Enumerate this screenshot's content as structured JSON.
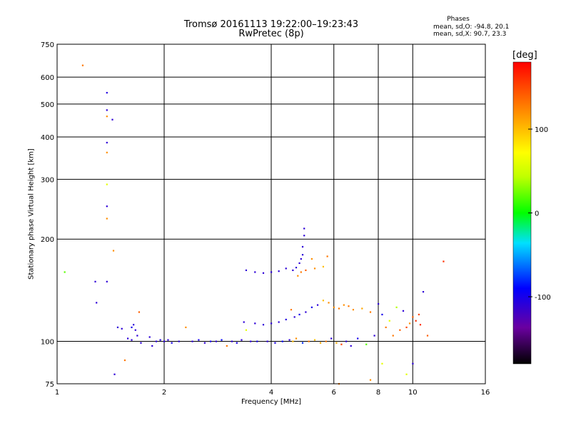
{
  "chart_data": {
    "type": "scatter",
    "title": "Tromsø 20161113 19:22:00–19:23:43",
    "subtitle": "RwPretec (8p)",
    "xlabel": "Frequency [MHz]",
    "ylabel": "Stationary phase Virtual Height [km]",
    "x_scale": "log",
    "y_scale": "log",
    "xlim": [
      1,
      16
    ],
    "ylim": [
      75,
      750
    ],
    "xticks": [
      "1",
      "2",
      "4",
      "6",
      "8",
      "10",
      "16"
    ],
    "yticks": [
      "75",
      "100",
      "200",
      "300",
      "400",
      "500",
      "600",
      "750"
    ],
    "grid": true,
    "phases": {
      "title": "Phases",
      "mean_o": "mean, sd,O: -94.8, 20.1",
      "mean_x": "mean, sd,X: 90.7, 23.3"
    },
    "colorbar": {
      "title": "[deg]",
      "ticks": [
        "100",
        "0",
        "-100"
      ],
      "range": [
        -180,
        180
      ]
    },
    "series": [
      {
        "points": [
          [
            1.05,
            160,
            20
          ],
          [
            1.18,
            650,
            130
          ],
          [
            1.28,
            150,
            -110
          ],
          [
            1.29,
            130,
            -110
          ],
          [
            1.38,
            540,
            -105
          ],
          [
            1.38,
            480,
            -110
          ],
          [
            1.38,
            460,
            120
          ],
          [
            1.38,
            385,
            -110
          ],
          [
            1.38,
            360,
            120
          ],
          [
            1.38,
            290,
            60
          ],
          [
            1.38,
            250,
            -110
          ],
          [
            1.38,
            230,
            120
          ],
          [
            1.38,
            150,
            -110
          ],
          [
            1.43,
            450,
            -110
          ],
          [
            1.44,
            185,
            120
          ],
          [
            1.45,
            80,
            -110
          ],
          [
            1.48,
            110,
            -110
          ],
          [
            1.52,
            109,
            -110
          ],
          [
            1.55,
            88,
            130
          ],
          [
            1.58,
            102,
            -110
          ],
          [
            1.62,
            101,
            -110
          ],
          [
            1.62,
            110,
            -100
          ],
          [
            1.64,
            112,
            -110
          ],
          [
            1.66,
            108,
            -110
          ],
          [
            1.68,
            104,
            -110
          ],
          [
            1.7,
            122,
            140
          ],
          [
            1.72,
            99,
            -110
          ],
          [
            1.82,
            103,
            -110
          ],
          [
            1.85,
            97,
            -110
          ],
          [
            1.9,
            100,
            -110
          ],
          [
            1.95,
            101,
            -105
          ],
          [
            2.0,
            100,
            -110
          ],
          [
            2.05,
            101,
            -110
          ],
          [
            2.1,
            99,
            -100
          ],
          [
            2.2,
            100,
            -110
          ],
          [
            2.3,
            110,
            120
          ],
          [
            2.4,
            100,
            -110
          ],
          [
            2.5,
            101,
            -100
          ],
          [
            2.6,
            99,
            -110
          ],
          [
            2.7,
            100,
            -100
          ],
          [
            2.8,
            100,
            -110
          ],
          [
            2.9,
            101,
            -90
          ],
          [
            3.0,
            97,
            130
          ],
          [
            3.1,
            100,
            -110
          ],
          [
            3.2,
            99,
            -100
          ],
          [
            3.3,
            101,
            -110
          ],
          [
            3.35,
            114,
            -110
          ],
          [
            3.4,
            108,
            60
          ],
          [
            3.5,
            100,
            -110
          ],
          [
            3.6,
            113,
            -110
          ],
          [
            3.65,
            100,
            -100
          ],
          [
            3.8,
            112,
            -110
          ],
          [
            3.9,
            100,
            -110
          ],
          [
            4.0,
            113,
            -110
          ],
          [
            4.1,
            99,
            -100
          ],
          [
            4.2,
            114,
            -110
          ],
          [
            4.3,
            100,
            -90
          ],
          [
            4.4,
            116,
            -105
          ],
          [
            4.5,
            101,
            -110
          ],
          [
            4.55,
            124,
            130
          ],
          [
            4.6,
            100,
            100
          ],
          [
            4.65,
            118,
            -110
          ],
          [
            4.7,
            102,
            120
          ],
          [
            4.8,
            120,
            -100
          ],
          [
            4.9,
            99,
            -80
          ],
          [
            5.0,
            122,
            -110
          ],
          [
            5.1,
            100,
            130
          ],
          [
            5.2,
            126,
            -100
          ],
          [
            5.3,
            101,
            100
          ],
          [
            5.4,
            128,
            -110
          ],
          [
            5.5,
            99,
            110
          ],
          [
            5.6,
            132,
            100
          ],
          [
            5.7,
            100,
            130
          ],
          [
            5.8,
            130,
            120
          ],
          [
            5.9,
            102,
            -110
          ],
          [
            6.0,
            126,
            120
          ],
          [
            6.1,
            99,
            110
          ],
          [
            6.2,
            125,
            130
          ],
          [
            6.3,
            98,
            150
          ],
          [
            6.4,
            128,
            120
          ],
          [
            6.5,
            100,
            -110
          ],
          [
            6.6,
            127,
            130
          ],
          [
            6.7,
            97,
            -110
          ],
          [
            6.8,
            124,
            120
          ],
          [
            7.0,
            102,
            -100
          ],
          [
            7.2,
            125,
            110
          ],
          [
            7.4,
            98,
            20
          ],
          [
            7.6,
            122,
            130
          ],
          [
            7.8,
            104,
            -110
          ],
          [
            8.0,
            129,
            -110
          ],
          [
            8.2,
            120,
            -100
          ],
          [
            8.4,
            110,
            130
          ],
          [
            8.6,
            115,
            60
          ],
          [
            8.8,
            104,
            130
          ],
          [
            9.0,
            126,
            40
          ],
          [
            9.2,
            108,
            140
          ],
          [
            9.4,
            123,
            -110
          ],
          [
            9.6,
            110,
            150
          ],
          [
            9.8,
            113,
            120
          ],
          [
            10.0,
            118,
            140
          ],
          [
            10.2,
            115,
            160
          ],
          [
            10.4,
            120,
            150
          ],
          [
            10.5,
            112,
            160
          ],
          [
            10.7,
            140,
            -110
          ],
          [
            10.0,
            86,
            -110
          ],
          [
            9.6,
            80,
            60
          ],
          [
            8.2,
            86,
            60
          ],
          [
            6.2,
            75,
            130
          ],
          [
            7.6,
            77,
            120
          ],
          [
            4.75,
            156,
            120
          ],
          [
            4.85,
            160,
            130
          ],
          [
            5.0,
            162,
            140
          ],
          [
            5.3,
            164,
            120
          ],
          [
            5.6,
            166,
            100
          ],
          [
            5.75,
            178,
            130
          ],
          [
            5.2,
            175,
            120
          ],
          [
            4.6,
            162,
            -110
          ],
          [
            4.7,
            165,
            -110
          ],
          [
            4.8,
            170,
            -110
          ],
          [
            4.85,
            175,
            -110
          ],
          [
            4.9,
            180,
            -110
          ],
          [
            4.9,
            190,
            -110
          ],
          [
            4.95,
            205,
            -110
          ],
          [
            4.95,
            215,
            -110
          ],
          [
            3.4,
            162,
            -110
          ],
          [
            3.6,
            160,
            -110
          ],
          [
            3.8,
            159,
            -110
          ],
          [
            4.0,
            160,
            -110
          ],
          [
            4.2,
            161,
            -110
          ],
          [
            4.4,
            164,
            -110
          ],
          [
            12.2,
            172,
            160
          ],
          [
            11.0,
            104,
            140
          ]
        ]
      }
    ]
  }
}
